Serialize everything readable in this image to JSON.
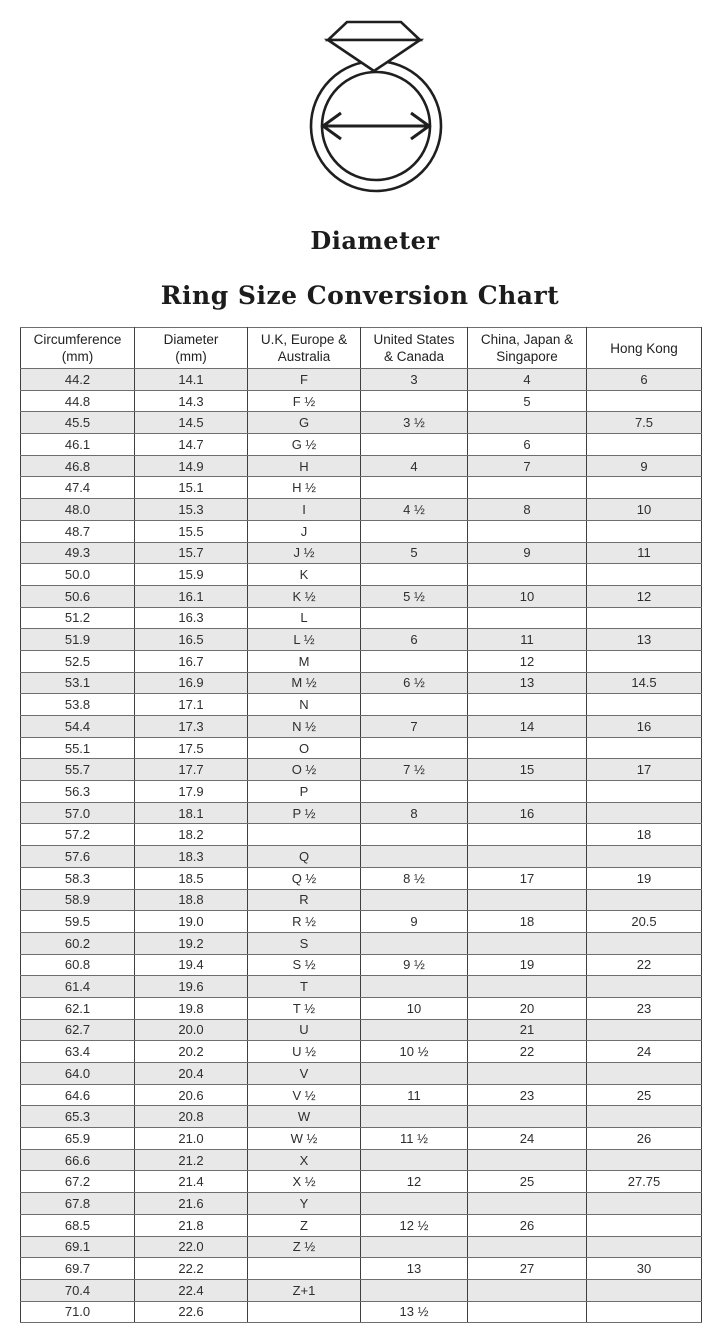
{
  "header": {
    "diameter_label": "Diameter",
    "title": "Ring Size Conversion Chart"
  },
  "colors": {
    "row_stripe": "#e8e8e8",
    "table_border_vertical": "#3f3f3f",
    "table_border_horizontal": "#6e6e6e",
    "text": "#2b2b2b",
    "background": "#ffffff"
  },
  "chart_data": {
    "type": "table",
    "title": "Ring Size Conversion Chart",
    "columns": [
      {
        "line1": "Circumference",
        "line2": "(mm)"
      },
      {
        "line1": "Diameter",
        "line2": "(mm)"
      },
      {
        "line1": "U.K, Europe &",
        "line2": "Australia"
      },
      {
        "line1": "United States",
        "line2": "& Canada"
      },
      {
        "line1": "China, Japan &",
        "line2": "Singapore"
      },
      {
        "line1": "Hong Kong",
        "line2": ""
      }
    ],
    "rows": [
      [
        "44.2",
        "14.1",
        "F",
        "3",
        "4",
        "6"
      ],
      [
        "44.8",
        "14.3",
        "F ½",
        "",
        "5",
        ""
      ],
      [
        "45.5",
        "14.5",
        "G",
        "3 ½",
        "",
        "7.5"
      ],
      [
        "46.1",
        "14.7",
        "G ½",
        "",
        "6",
        ""
      ],
      [
        "46.8",
        "14.9",
        "H",
        "4",
        "7",
        "9"
      ],
      [
        "47.4",
        "15.1",
        "H ½",
        "",
        "",
        ""
      ],
      [
        "48.0",
        "15.3",
        "I",
        "4 ½",
        "8",
        "10"
      ],
      [
        "48.7",
        "15.5",
        "J",
        "",
        "",
        ""
      ],
      [
        "49.3",
        "15.7",
        "J ½",
        "5",
        "9",
        "11"
      ],
      [
        "50.0",
        "15.9",
        "K",
        "",
        "",
        ""
      ],
      [
        "50.6",
        "16.1",
        "K ½",
        "5 ½",
        "10",
        "12"
      ],
      [
        "51.2",
        "16.3",
        "L",
        "",
        "",
        ""
      ],
      [
        "51.9",
        "16.5",
        "L ½",
        "6",
        "11",
        "13"
      ],
      [
        "52.5",
        "16.7",
        "M",
        "",
        "12",
        ""
      ],
      [
        "53.1",
        "16.9",
        "M ½",
        "6 ½",
        "13",
        "14.5"
      ],
      [
        "53.8",
        "17.1",
        "N",
        "",
        "",
        ""
      ],
      [
        "54.4",
        "17.3",
        "N ½",
        "7",
        "14",
        "16"
      ],
      [
        "55.1",
        "17.5",
        "O",
        "",
        "",
        ""
      ],
      [
        "55.7",
        "17.7",
        "O ½",
        "7 ½",
        "15",
        "17"
      ],
      [
        "56.3",
        "17.9",
        "P",
        "",
        "",
        ""
      ],
      [
        "57.0",
        "18.1",
        "P ½",
        "8",
        "16",
        ""
      ],
      [
        "57.2",
        "18.2",
        "",
        "",
        "",
        "18"
      ],
      [
        "57.6",
        "18.3",
        "Q",
        "",
        "",
        ""
      ],
      [
        "58.3",
        "18.5",
        "Q ½",
        "8 ½",
        "17",
        "19"
      ],
      [
        "58.9",
        "18.8",
        "R",
        "",
        "",
        ""
      ],
      [
        "59.5",
        "19.0",
        "R ½",
        "9",
        "18",
        "20.5"
      ],
      [
        "60.2",
        "19.2",
        "S",
        "",
        "",
        ""
      ],
      [
        "60.8",
        "19.4",
        "S ½",
        "9 ½",
        "19",
        "22"
      ],
      [
        "61.4",
        "19.6",
        "T",
        "",
        "",
        ""
      ],
      [
        "62.1",
        "19.8",
        "T ½",
        "10",
        "20",
        "23"
      ],
      [
        "62.7",
        "20.0",
        "U",
        "",
        "21",
        ""
      ],
      [
        "63.4",
        "20.2",
        "U ½",
        "10 ½",
        "22",
        "24"
      ],
      [
        "64.0",
        "20.4",
        "V",
        "",
        "",
        ""
      ],
      [
        "64.6",
        "20.6",
        "V ½",
        "11",
        "23",
        "25"
      ],
      [
        "65.3",
        "20.8",
        "W",
        "",
        "",
        ""
      ],
      [
        "65.9",
        "21.0",
        "W ½",
        "11 ½",
        "24",
        "26"
      ],
      [
        "66.6",
        "21.2",
        "X",
        "",
        "",
        ""
      ],
      [
        "67.2",
        "21.4",
        "X ½",
        "12",
        "25",
        "27.75"
      ],
      [
        "67.8",
        "21.6",
        "Y",
        "",
        "",
        ""
      ],
      [
        "68.5",
        "21.8",
        "Z",
        "12 ½",
        "26",
        ""
      ],
      [
        "69.1",
        "22.0",
        "Z ½",
        "",
        "",
        ""
      ],
      [
        "69.7",
        "22.2",
        "",
        "13",
        "27",
        "30"
      ],
      [
        "70.4",
        "22.4",
        "Z+1",
        "",
        "",
        ""
      ],
      [
        "71.0",
        "22.6",
        "",
        "13 ½",
        "",
        ""
      ]
    ]
  }
}
